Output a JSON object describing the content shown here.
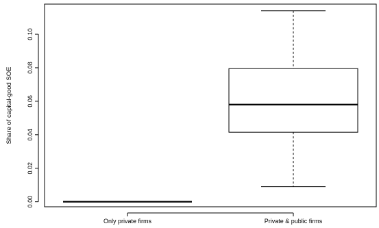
{
  "chart_data": {
    "type": "box",
    "title": "",
    "xlabel": "",
    "ylabel": "Share of capital-good SOE",
    "categories": [
      "Only private firms",
      "Private & public firms"
    ],
    "ylim": [
      -0.003,
      0.118
    ],
    "yticks": [
      0.0,
      0.02,
      0.04,
      0.06,
      0.08,
      0.1
    ],
    "ytick_labels": [
      "0.00",
      "0.02",
      "0.04",
      "0.06",
      "0.08",
      "0.10"
    ],
    "boxes": [
      {
        "category": "Only private firms",
        "min": 0.0,
        "q1": 0.0,
        "median": 0.0,
        "q3": 0.0,
        "max": 0.0
      },
      {
        "category": "Private & public firms",
        "min": 0.009,
        "q1": 0.0415,
        "median": 0.058,
        "q3": 0.0795,
        "max": 0.114
      }
    ],
    "grid": false,
    "legend": "none"
  }
}
